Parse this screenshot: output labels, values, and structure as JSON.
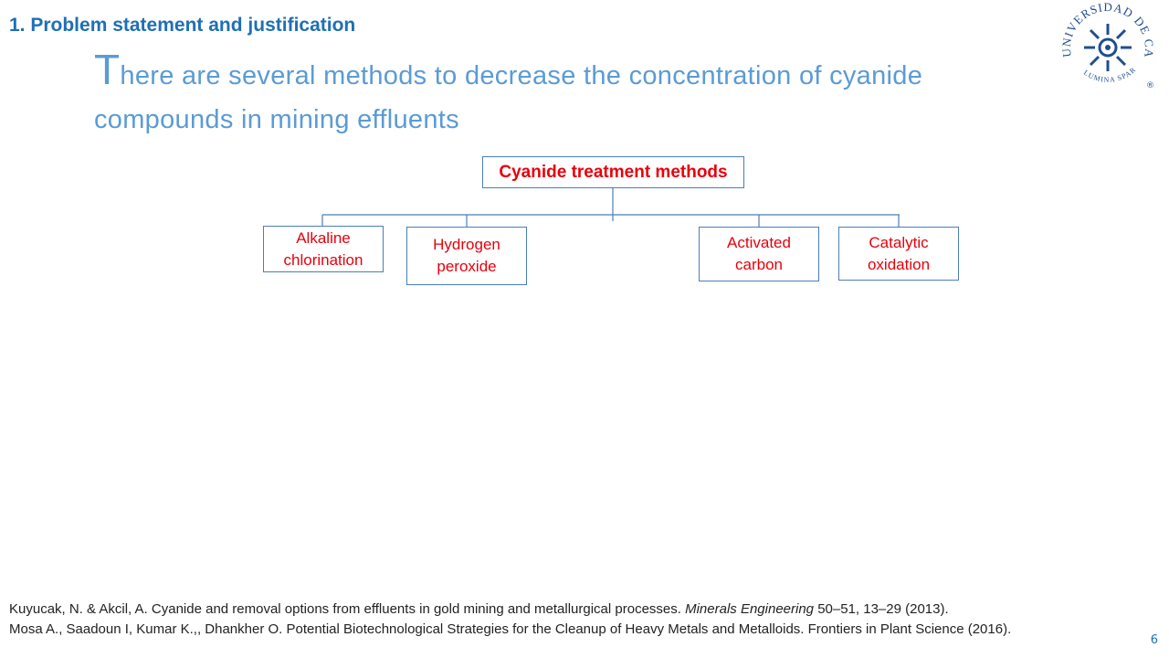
{
  "header": {
    "title": "1. Problem statement and justification"
  },
  "heading": "There are several methods to decrease the concentration of cyanide compounds in mining effluents",
  "diagram": {
    "root": "Cyanide treatment methods",
    "nodes": [
      {
        "label": "Alkaline chlorination"
      },
      {
        "label": "Hydrogen peroxide"
      },
      {
        "label": "Activated carbon"
      },
      {
        "label": "Catalytic oxidation"
      }
    ]
  },
  "references": [
    {
      "before": "Kuyucak, N. & Akcil, A. Cyanide and removal options from effluents in gold mining and metallurgical processes. ",
      "journal": "Minerals Engineering",
      "after": " 50–51, 13–29 (2013)."
    },
    {
      "text": "Mosa  A., Saadoun I, Kumar K.,, Dhankher O. Potential Biotechnological Strategies for the Cleanup of Heavy Metals and Metalloids. Frontiers in Plant Science (2016)."
    }
  ],
  "logo": {
    "name": "UNIVERSIDAD DE CALDAS",
    "motto": "LUMINA SPARGO",
    "mark": "®"
  },
  "page_number": "6"
}
